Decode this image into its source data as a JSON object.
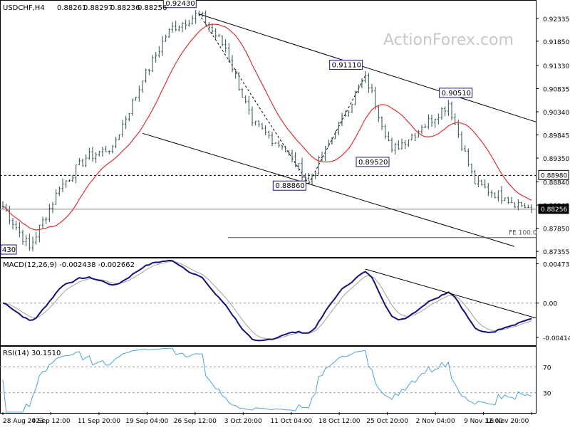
{
  "header": {
    "symbol": "USDCHF,H4",
    "ohlc": [
      "0.88261",
      "0.88297",
      "0.88236",
      "0.88256"
    ]
  },
  "watermark": "ActionForex.com",
  "colors": {
    "candle": "#2f4f4f",
    "ma": "#e03030",
    "macd": "#12127a",
    "signal": "#a0a0a0",
    "rsi": "#4aa3df",
    "trendline": "#000000",
    "panel_border": "#000000",
    "label_box": "#1a1a7a",
    "current_box": "#000000"
  },
  "chart_data": [
    {
      "type": "candlestick",
      "name": "price",
      "ylim": [
        0.8725,
        0.927
      ],
      "yticks": [
        "0.92335",
        "0.91850",
        "0.91330",
        "0.90835",
        "0.90340",
        "0.89845",
        "0.89350",
        "0.88840",
        "0.88345",
        "0.87850",
        "0.87355"
      ],
      "x_tick_labels": [
        "28 Aug 2023",
        "4 Sep 12:00",
        "11 Sep 20:00",
        "19 Sep 04:00",
        "26 Sep 12:00",
        "3 Oct 20:00",
        "11 Oct 04:00",
        "18 Oct 12:00",
        "25 Oct 20:00",
        "2 Nov 04:00",
        "9 Nov 12:00",
        "16 Nov 20:00"
      ],
      "key_points": [
        {
          "date": "28 Aug 2023",
          "value": 0.8832
        },
        {
          "date": "31 Aug 2023",
          "value": 0.8743
        },
        {
          "date": "4 Sep 12:00",
          "value": 0.887
        },
        {
          "date": "11 Sep 20:00",
          "value": 0.8935
        },
        {
          "date": "19 Sep 04:00",
          "value": 0.896
        },
        {
          "date": "22 Sep 2023",
          "value": 0.91
        },
        {
          "date": "26 Sep 12:00",
          "value": 0.921
        },
        {
          "date": "28 Sep 2023",
          "value": 0.9243
        },
        {
          "date": "3 Oct 20:00",
          "value": 0.917
        },
        {
          "date": "11 Oct 04:00",
          "value": 0.901
        },
        {
          "date": "15 Oct 2023",
          "value": 0.896
        },
        {
          "date": "18 Oct 12:00",
          "value": 0.8886
        },
        {
          "date": "25 Oct 20:00",
          "value": 0.899
        },
        {
          "date": "30 Oct 2023",
          "value": 0.9111
        },
        {
          "date": "2 Nov 04:00",
          "value": 0.8952
        },
        {
          "date": "6 Nov 2023",
          "value": 0.9
        },
        {
          "date": "9 Nov 12:00",
          "value": 0.9051
        },
        {
          "date": "14 Nov 2023",
          "value": 0.888
        },
        {
          "date": "16 Nov 20:00",
          "value": 0.885
        },
        {
          "date": "20 Nov 2023",
          "value": 0.88256
        }
      ],
      "level_labels": [
        {
          "text": "0.92430",
          "value": 0.9243
        },
        {
          "text": "0.91110",
          "value": 0.9111
        },
        {
          "text": "0.90510",
          "value": 0.9051
        },
        {
          "text": "0.89520",
          "value": 0.8952
        },
        {
          "text": "0.88860",
          "value": 0.8886
        }
      ],
      "cut_label": "430",
      "horizontal_level": {
        "value": 0.8898,
        "label": "0.88980"
      },
      "current_price": {
        "value": 0.88256,
        "label": "0.88256"
      },
      "fe_label": "FE 100.0",
      "fe_level": 0.8765
    },
    {
      "type": "line",
      "name": "MACD",
      "title": "MACD(12,26,9) -0.002438 -0.002662",
      "yticks": [
        "0.004738",
        "0.00",
        "-0.004144"
      ],
      "ylim": [
        -0.005,
        0.0053
      ]
    },
    {
      "type": "line",
      "name": "RSI",
      "title": "RSI(14) 30.1510",
      "yticks": [
        "70",
        "30"
      ],
      "ylim": [
        0,
        100
      ]
    }
  ]
}
